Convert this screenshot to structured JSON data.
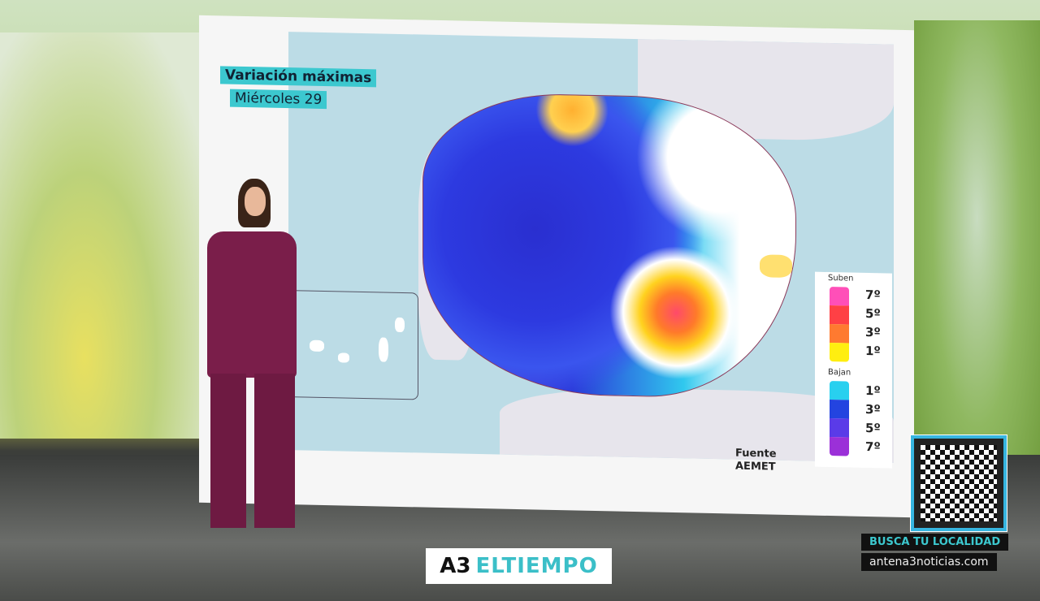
{
  "map": {
    "title": "Variación máximas",
    "subtitle": "Miércoles 29"
  },
  "legend": {
    "up_label": "Suben",
    "up": [
      {
        "value": "7º",
        "color": "#ff4fb8"
      },
      {
        "value": "5º",
        "color": "#ff4045"
      },
      {
        "value": "3º",
        "color": "#ff7a30"
      },
      {
        "value": "1º",
        "color": "#ffee10"
      }
    ],
    "down_label": "Bajan",
    "down": [
      {
        "value": "1º",
        "color": "#28d0ef"
      },
      {
        "value": "3º",
        "color": "#2344e0"
      },
      {
        "value": "5º",
        "color": "#5a3be8"
      },
      {
        "value": "7º",
        "color": "#9b30d8"
      }
    ]
  },
  "source": {
    "label": "Fuente",
    "name": "AEMET"
  },
  "branding": {
    "logo_a3": "A3",
    "logo_text": "ELTIEMPO",
    "busca": "BUSCA TU LOCALIDAD",
    "url": "antena3noticias.com"
  }
}
